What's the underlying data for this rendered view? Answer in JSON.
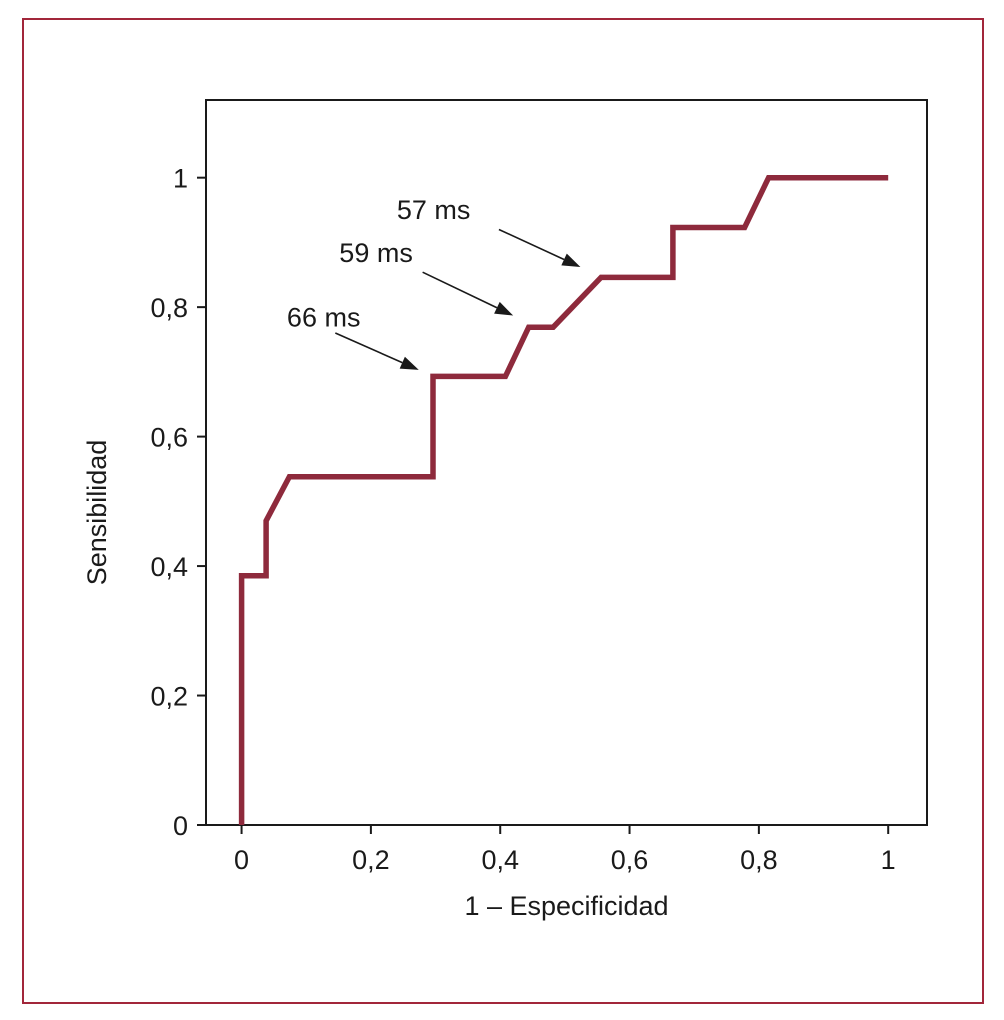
{
  "chart_data": {
    "type": "line",
    "step": true,
    "xlabel": "1 – Especificidad",
    "ylabel": "Sensibilidad",
    "xlim": [
      -0.055,
      1.06
    ],
    "ylim": [
      0,
      1.12
    ],
    "x_ticks": [
      0,
      0.2,
      0.4,
      0.6,
      0.8,
      1
    ],
    "x_tick_labels": [
      "0",
      "0,2",
      "0,4",
      "0,6",
      "0,8",
      "1"
    ],
    "y_ticks": [
      0,
      0.2,
      0.4,
      0.6,
      0.8,
      1
    ],
    "y_tick_labels": [
      "0",
      "0,2",
      "0,4",
      "0,6",
      "0,8",
      "1"
    ],
    "grid": false,
    "series": [
      {
        "color": "#8e2a3c",
        "points": [
          [
            0.0,
            0.0
          ],
          [
            0.0,
            0.385
          ],
          [
            0.038,
            0.385
          ],
          [
            0.038,
            0.47
          ],
          [
            0.074,
            0.538
          ],
          [
            0.296,
            0.538
          ],
          [
            0.296,
            0.693
          ],
          [
            0.408,
            0.693
          ],
          [
            0.444,
            0.769
          ],
          [
            0.482,
            0.769
          ],
          [
            0.556,
            0.846
          ],
          [
            0.667,
            0.846
          ],
          [
            0.667,
            0.923
          ],
          [
            0.778,
            0.923
          ],
          [
            0.815,
            1.0
          ],
          [
            1.0,
            1.0
          ]
        ]
      }
    ],
    "annotations": [
      {
        "text": "66 ms",
        "text_x": 0.127,
        "text_y": 0.77,
        "arrow_from": [
          0.145,
          0.76
        ],
        "arrow_to": [
          0.274,
          0.703
        ]
      },
      {
        "text": "59 ms",
        "text_x": 0.208,
        "text_y": 0.87,
        "arrow_from": [
          0.28,
          0.854
        ],
        "arrow_to": [
          0.42,
          0.787
        ]
      },
      {
        "text": "57 ms",
        "text_x": 0.297,
        "text_y": 0.936,
        "arrow_from": [
          0.398,
          0.92
        ],
        "arrow_to": [
          0.524,
          0.862
        ]
      }
    ]
  }
}
